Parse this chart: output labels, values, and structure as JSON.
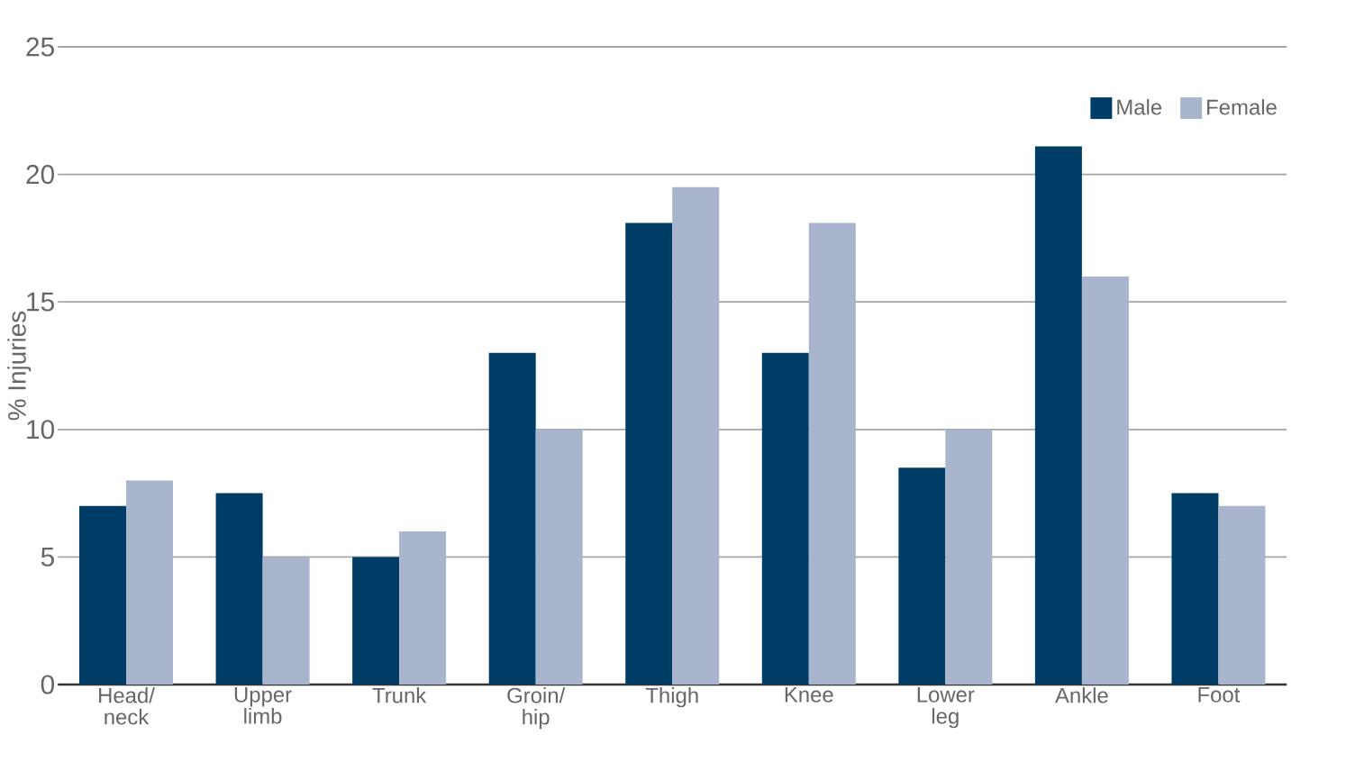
{
  "chart_data": {
    "type": "bar",
    "ylabel": "% Injuries",
    "categories": [
      "Head/ neck",
      "Upper limb",
      "Trunk",
      "Groin/ hip",
      "Thigh",
      "Knee",
      "Lower leg",
      "Ankle",
      "Foot"
    ],
    "series": [
      {
        "name": "Male",
        "color": "#003d66",
        "values": [
          7,
          7.5,
          5,
          13,
          18.1,
          13,
          8.5,
          21.1,
          7.5
        ]
      },
      {
        "name": "Female",
        "color": "#a9b5cc",
        "values": [
          8,
          5,
          6,
          10,
          19.5,
          18.1,
          10,
          16,
          7
        ]
      }
    ],
    "ylim": [
      0,
      25
    ],
    "yticks": [
      0,
      5,
      10,
      15,
      20,
      25
    ],
    "grid": "y",
    "legend": "top right"
  }
}
